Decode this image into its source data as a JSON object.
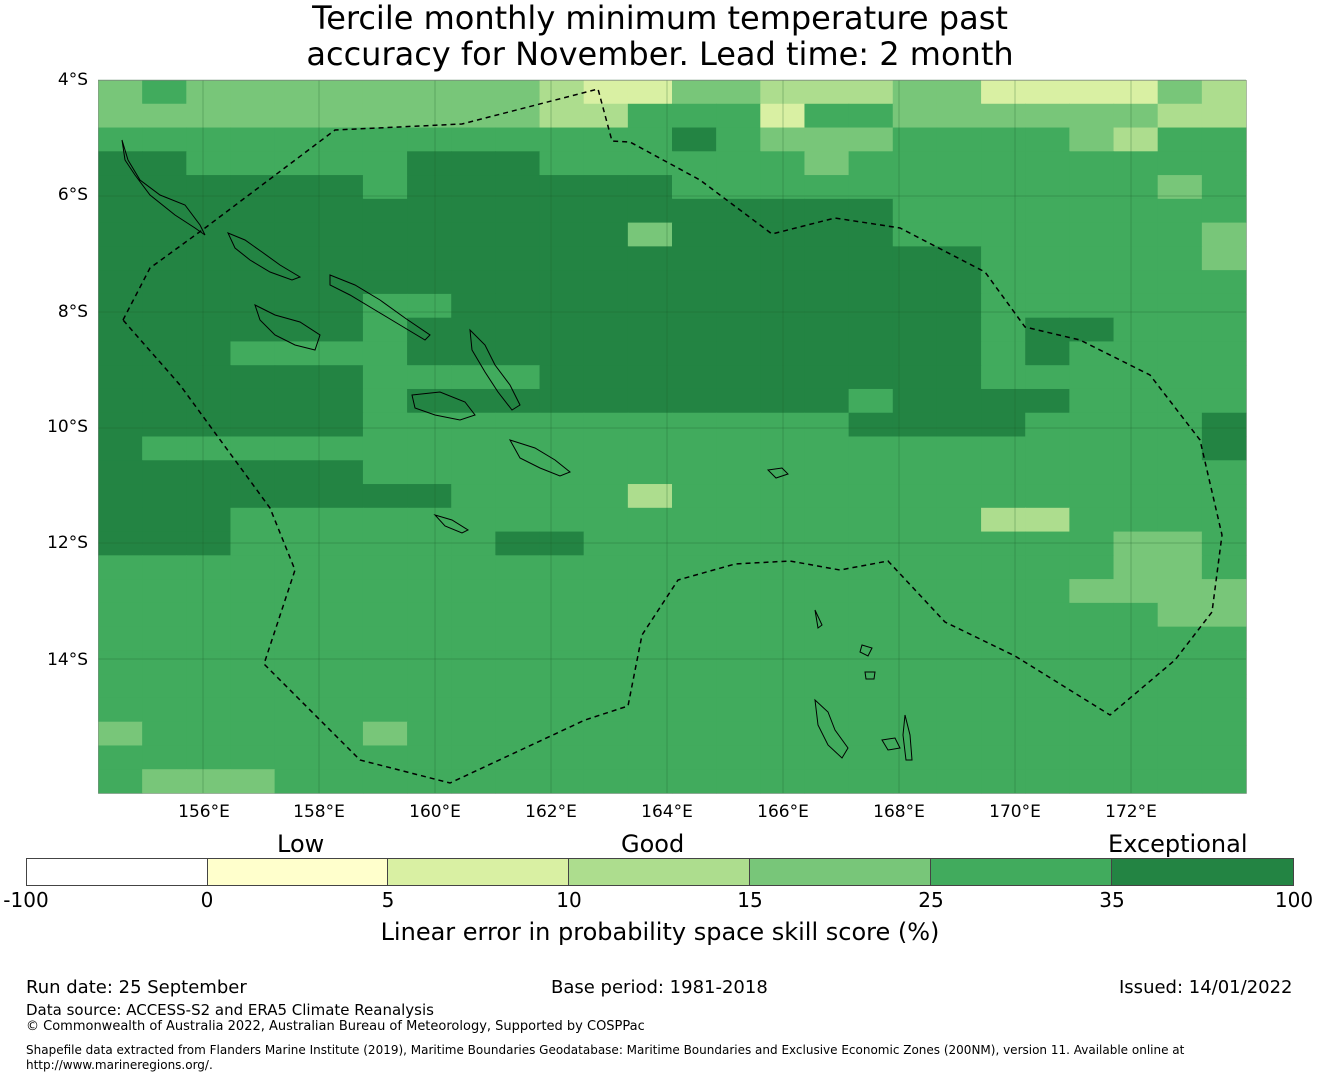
{
  "title": {
    "line1": "Tercile monthly minimum temperature past",
    "line2": "accuracy for November. Lead time: 2 month"
  },
  "map": {
    "lat_labels": [
      "4°S",
      "6°S",
      "8°S",
      "10°S",
      "12°S",
      "14°S"
    ],
    "lon_labels": [
      "156°E",
      "158°E",
      "160°E",
      "162°E",
      "164°E",
      "166°E",
      "168°E",
      "170°E",
      "172°E"
    ],
    "palette": {
      "A": "#ffffcc",
      "B": "#d9f0a3",
      "C": "#addd8e",
      "D": "#78c679",
      "E": "#41ab5d",
      "F": "#238443"
    },
    "grid_rows": [
      "DEDDDDDDDDCBBDDCCCDDBBBBDC",
      "DDDDDDDDDDCCEEEBEEDDDDDDCC",
      "EEEEEEEEEEEEEFEDDDEEEEDCEE",
      "FFEEEEEFFFEEEEEEDEEEEEEEEE",
      "FFFFFFEFFFFFFEEEEEEEEEEEDE",
      "FFFFFFFFFFFFFFFFFFEEEEEEEE",
      "FFFFFFFFFFFFDFFFFFEEEEEEED",
      "FFFFFFFFFFFFFFFFFFFFEEEEED",
      "FFFFFFFFFFFFFFFFFFFFEEEEEE",
      "FFFFFFEEFFFFFFFFFFFFEEEEEE",
      "FFFFFFEFFFFFFFFFFFFFEFFEEE",
      "FFFEEEEFFFFFFFFFFFFFEFEEEE",
      "FFFFFFEEEEFFFFFFFFFFEEEEEE",
      "FFFFFFEFFFFFFFFFFEFFFFEEEE",
      "FFFFFFEEEEEEEEEEEFFFFEEEEF",
      "FEEEEEEEEEEEEEEEEEEEEEEEEF",
      "FFFFFFEEEEEEEEEEEEEEEEEEEE",
      "FFFFFFFFEEEECEEEEEEEEEEEEE",
      "FFFEEEEEEEEEEEEEEEEECCEEEE",
      "FFFEEEEEEFFEEEEEEEEEEEEDDE",
      "EEEEEEEEEEEEEEEEEEEEEEEDDE",
      "EEEEEEEEEEEEEEEEEEEEEEDDDD",
      "EEEEEEEEEEEEEEEEEEEEEEEEDD",
      "EEEEEEEEEEEEEEEEEEEEEEEEEE",
      "EEEEEEEEEEEEEEEEEEEEEEEEEE",
      "EEEEEEEEEEEEEEEEEEEEEEEEEE",
      "EEEEEEEEEEEEEEEEEEEEEEEEEE",
      "DEEEEEDEEEEEEEEEEEEEEEEEEE",
      "EEEEEEEEEEEEEEEEEEEEEEEEEE",
      "EDDDEEEEEEEEEEEEEEEEEEEEEE"
    ]
  },
  "legend": {
    "category_labels": [
      "Low",
      "Good",
      "Exceptional"
    ],
    "tick_labels": [
      "-100",
      "0",
      "5",
      "10",
      "15",
      "25",
      "35",
      "100"
    ],
    "segment_colors": [
      "#ffffff",
      "#ffffcc",
      "#d9f0a3",
      "#addd8e",
      "#78c679",
      "#41ab5d",
      "#238443"
    ],
    "title": "Linear error in probability space skill score (%)"
  },
  "footer": {
    "run_date": "Run date: 25 September",
    "base_period": "Base period: 1981-2018",
    "issued": "Issued: 14/01/2022",
    "data_source": "Data source: ACCESS-S2 and ERA5 Climate Reanalysis",
    "copyright": "© Commonwealth of Australia 2022, Australian Bureau of Meteorology, Supported by COSPPac",
    "shapefile_line1": "Shapefile data extracted from Flanders Marine Institute (2019), Maritime Boundaries Geodatabase: Maritime Boundaries and Exclusive Economic Zones (200NM), version 11. Available online at",
    "shapefile_line2": "http://www.marineregions.org/."
  }
}
